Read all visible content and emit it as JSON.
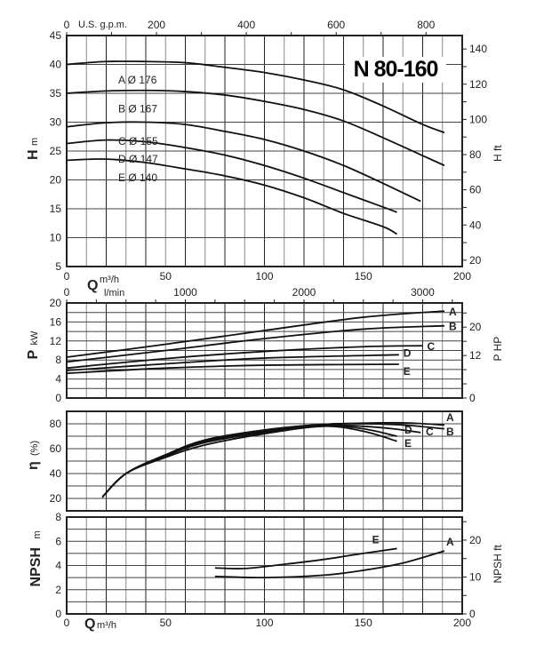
{
  "title": "N 80-160",
  "chart_data": [
    {
      "type": "line",
      "panel": "head",
      "ylabel": "H",
      "yunit": "m",
      "ylim": [
        5,
        45
      ],
      "yticks": [
        5,
        10,
        15,
        20,
        25,
        30,
        35,
        40,
        45
      ],
      "xlim": [
        0,
        200
      ],
      "xticks": [
        0,
        50,
        100,
        150,
        200
      ],
      "top_axis": {
        "label": "U.S. g.p.m.",
        "ticks": [
          0,
          200,
          400,
          600,
          800
        ],
        "factor": 4.403
      },
      "right_axis": {
        "label": "H ft",
        "ticks": [
          20,
          40,
          60,
          80,
          100,
          120,
          140
        ],
        "factor": 3.281
      },
      "curve_labels": [
        "A Ø 176",
        "B Ø 167",
        "C Ø 155",
        "D Ø 147",
        "E Ø 140"
      ],
      "series": [
        {
          "name": "A",
          "x": [
            0,
            20,
            40,
            60,
            80,
            100,
            120,
            140,
            160,
            180,
            191
          ],
          "y": [
            40,
            40.5,
            40.5,
            40.3,
            39.5,
            38.6,
            37.3,
            35.6,
            32.8,
            29.6,
            28.2
          ]
        },
        {
          "name": "B",
          "x": [
            0,
            20,
            40,
            60,
            80,
            100,
            120,
            140,
            160,
            180,
            191
          ],
          "y": [
            35,
            35.4,
            35.5,
            35.3,
            34.7,
            33.6,
            32.2,
            30.2,
            27.3,
            24.2,
            22.5
          ]
        },
        {
          "name": "C",
          "x": [
            0,
            20,
            40,
            60,
            80,
            100,
            120,
            140,
            160,
            179
          ],
          "y": [
            29.2,
            29.9,
            30,
            29.6,
            28.4,
            27,
            25,
            22.5,
            19.4,
            16.3
          ]
        },
        {
          "name": "D",
          "x": [
            0,
            20,
            40,
            60,
            80,
            100,
            120,
            140,
            160,
            167
          ],
          "y": [
            26.3,
            26.9,
            26.6,
            25.6,
            24.3,
            22.5,
            20.3,
            17.8,
            15.3,
            14.4
          ]
        },
        {
          "name": "E",
          "x": [
            0,
            20,
            40,
            60,
            80,
            100,
            120,
            140,
            160,
            167
          ],
          "y": [
            23.4,
            23.6,
            23,
            21.9,
            20.7,
            19.1,
            16.9,
            14.2,
            11.9,
            10.6
          ]
        }
      ]
    },
    {
      "type": "line",
      "panel": "power",
      "ylabel": "P",
      "yunit": "kW",
      "ylim": [
        0,
        20
      ],
      "yticks": [
        0,
        4,
        8,
        12,
        16,
        20
      ],
      "xlim": [
        0,
        200
      ],
      "top_axis": {
        "label": "l/min",
        "ticks": [
          0,
          1000,
          2000,
          3000
        ],
        "factor": 16.667
      },
      "xlabel": "Q",
      "xunit": "m³/h",
      "right_axis": {
        "label": "P HP",
        "ticks": [
          0,
          12,
          20
        ],
        "factor": 1.341
      },
      "series": [
        {
          "name": "A",
          "x": [
            0,
            50,
            100,
            150,
            191
          ],
          "y": [
            8.6,
            11.3,
            14.2,
            17,
            18.3
          ]
        },
        {
          "name": "B",
          "x": [
            0,
            50,
            100,
            150,
            191
          ],
          "y": [
            7.6,
            10,
            12.5,
            14.5,
            15.2
          ]
        },
        {
          "name": "C",
          "x": [
            0,
            50,
            100,
            150,
            180
          ],
          "y": [
            6.3,
            8.3,
            9.8,
            10.8,
            11
          ]
        },
        {
          "name": "D",
          "x": [
            0,
            50,
            100,
            168
          ],
          "y": [
            5.8,
            7.2,
            8.4,
            9.1
          ]
        },
        {
          "name": "E",
          "x": [
            0,
            50,
            100,
            168
          ],
          "y": [
            5.2,
            6.3,
            6.9,
            7.1
          ]
        }
      ]
    },
    {
      "type": "line",
      "panel": "efficiency",
      "ylabel": "η",
      "yunit": "(%)",
      "ylim": [
        10,
        90
      ],
      "yticks": [
        20,
        40,
        60,
        80
      ],
      "xlim": [
        0,
        200
      ],
      "series": [
        {
          "name": "A",
          "x": [
            18,
            30,
            50,
            70,
            100,
            130,
            150,
            170,
            191
          ],
          "y": [
            21,
            40,
            55,
            67,
            75,
            79.5,
            80.5,
            80.8,
            79
          ]
        },
        {
          "name": "B",
          "x": [
            18,
            30,
            50,
            70,
            100,
            130,
            150,
            170,
            191
          ],
          "y": [
            21,
            40,
            55,
            67,
            75,
            79.5,
            80,
            79,
            76
          ]
        },
        {
          "name": "C",
          "x": [
            18,
            30,
            50,
            70,
            100,
            130,
            150,
            165,
            179
          ],
          "y": [
            21,
            40,
            55,
            66,
            74,
            79,
            78,
            76,
            73
          ]
        },
        {
          "name": "D",
          "x": [
            18,
            30,
            50,
            70,
            100,
            130,
            150,
            167
          ],
          "y": [
            21,
            40,
            54,
            65,
            73,
            78.5,
            76,
            70
          ]
        },
        {
          "name": "E",
          "x": [
            18,
            30,
            50,
            70,
            100,
            130,
            150,
            167
          ],
          "y": [
            21,
            40,
            53,
            63,
            72,
            78,
            74,
            66
          ]
        }
      ]
    },
    {
      "type": "line",
      "panel": "npsh",
      "ylabel": "NPSH",
      "yunit": "m",
      "ylim": [
        0,
        8
      ],
      "yticks": [
        0,
        2,
        4,
        6,
        8
      ],
      "xlim": [
        0,
        200
      ],
      "xticks": [
        0,
        50,
        100,
        150,
        200
      ],
      "xlabel": "Q",
      "xunit": "m³/h",
      "right_axis": {
        "label": "NPSH ft",
        "ticks": [
          0,
          10,
          20
        ],
        "factor": 3.281
      },
      "series": [
        {
          "name": "E",
          "x": [
            75,
            90,
            110,
            130,
            150,
            167
          ],
          "y": [
            3.8,
            3.75,
            4.1,
            4.5,
            5,
            5.4
          ]
        },
        {
          "name": "A",
          "x": [
            75,
            100,
            130,
            150,
            170,
            191
          ],
          "y": [
            3.1,
            3.0,
            3.2,
            3.6,
            4.2,
            5.2
          ]
        }
      ]
    }
  ]
}
